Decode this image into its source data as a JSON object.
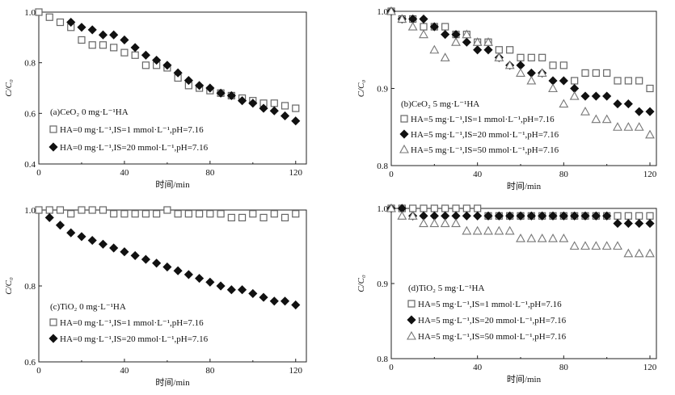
{
  "chart_data": [
    {
      "type": "scatter",
      "panel_label": "(a)CeO₂ 0 mg·L⁻¹HA",
      "xlabel": "时间/min",
      "ylabel": "C/C₀",
      "xlim": [
        0,
        125
      ],
      "ylim": [
        0.4,
        1.0
      ],
      "xticks": [
        0,
        40,
        80,
        120
      ],
      "yticks": [
        0.4,
        0.6,
        0.8,
        1.0
      ],
      "grid": false,
      "legend_position": "bottom-left",
      "series": [
        {
          "name": "HA=0 mg·L⁻¹,IS=1 mmol·L⁻¹,pH=7.16",
          "marker": "square-open",
          "x": [
            0,
            5,
            10,
            15,
            20,
            25,
            30,
            35,
            40,
            45,
            50,
            55,
            60,
            65,
            70,
            75,
            80,
            85,
            90,
            95,
            100,
            105,
            110,
            115,
            120
          ],
          "y": [
            1.0,
            0.98,
            0.96,
            0.94,
            0.89,
            0.87,
            0.87,
            0.86,
            0.84,
            0.83,
            0.79,
            0.79,
            0.78,
            0.74,
            0.71,
            0.7,
            0.69,
            0.68,
            0.67,
            0.66,
            0.65,
            0.64,
            0.64,
            0.63,
            0.62
          ]
        },
        {
          "name": "HA=0 mg·L⁻¹,IS=20 mmol·L⁻¹,pH=7.16",
          "marker": "diamond-filled",
          "x": [
            15,
            20,
            25,
            30,
            35,
            40,
            45,
            50,
            55,
            60,
            65,
            70,
            75,
            80,
            85,
            90,
            95,
            100,
            105,
            110,
            115,
            120
          ],
          "y": [
            0.96,
            0.94,
            0.93,
            0.91,
            0.91,
            0.89,
            0.86,
            0.83,
            0.81,
            0.79,
            0.76,
            0.73,
            0.71,
            0.7,
            0.68,
            0.67,
            0.65,
            0.64,
            0.62,
            0.61,
            0.59,
            0.57
          ]
        }
      ]
    },
    {
      "type": "scatter",
      "panel_label": "(b)CeO₂ 5 mg·L⁻¹HA",
      "xlabel": "时间/min",
      "ylabel": "C/C₀",
      "xlim": [
        0,
        123
      ],
      "ylim": [
        0.8,
        1.0
      ],
      "xticks": [
        0,
        40,
        80,
        120
      ],
      "yticks": [
        0.8,
        0.9,
        1.0
      ],
      "grid": false,
      "legend_position": "bottom-left",
      "series": [
        {
          "name": "HA=5 mg·L⁻¹,IS=1 mmol·L⁻¹,pH=7.16",
          "marker": "square-open",
          "x": [
            0,
            5,
            10,
            15,
            20,
            25,
            30,
            35,
            40,
            45,
            50,
            55,
            60,
            65,
            70,
            75,
            80,
            85,
            90,
            95,
            100,
            105,
            110,
            115,
            120
          ],
          "y": [
            1.0,
            0.99,
            0.99,
            0.98,
            0.98,
            0.98,
            0.97,
            0.97,
            0.96,
            0.96,
            0.95,
            0.95,
            0.94,
            0.94,
            0.94,
            0.93,
            0.93,
            0.91,
            0.92,
            0.92,
            0.92,
            0.91,
            0.91,
            0.91,
            0.9
          ]
        },
        {
          "name": "HA=5 mg·L⁻¹,IS=20 mmol·L⁻¹,pH=7.16",
          "marker": "diamond-filled",
          "x": [
            0,
            5,
            10,
            15,
            20,
            25,
            30,
            35,
            40,
            45,
            50,
            55,
            60,
            65,
            70,
            75,
            80,
            85,
            90,
            95,
            100,
            105,
            110,
            115,
            120
          ],
          "y": [
            1.0,
            0.99,
            0.99,
            0.99,
            0.98,
            0.97,
            0.97,
            0.96,
            0.95,
            0.95,
            0.94,
            0.93,
            0.93,
            0.92,
            0.92,
            0.91,
            0.91,
            0.9,
            0.89,
            0.89,
            0.89,
            0.88,
            0.88,
            0.87,
            0.87
          ]
        },
        {
          "name": "HA=5 mg·L⁻¹,IS=50 mmol·L⁻¹,pH=7.16",
          "marker": "triangle-open",
          "x": [
            0,
            5,
            10,
            15,
            20,
            25,
            30,
            35,
            40,
            45,
            50,
            55,
            60,
            65,
            70,
            75,
            80,
            85,
            90,
            95,
            100,
            105,
            110,
            115,
            120
          ],
          "y": [
            1.0,
            0.99,
            0.98,
            0.97,
            0.95,
            0.94,
            0.96,
            0.97,
            0.96,
            0.96,
            0.94,
            0.93,
            0.92,
            0.91,
            0.92,
            0.9,
            0.88,
            0.89,
            0.87,
            0.86,
            0.86,
            0.85,
            0.85,
            0.85,
            0.84
          ]
        }
      ]
    },
    {
      "type": "scatter",
      "panel_label": "(c)TiO₂ 0 mg·L⁻¹HA",
      "xlabel": "时间/min",
      "ylabel": "C/C₀",
      "xlim": [
        0,
        125
      ],
      "ylim": [
        0.6,
        1.0
      ],
      "xticks": [
        0,
        40,
        80,
        120
      ],
      "yticks": [
        0.6,
        0.8,
        1.0
      ],
      "grid": false,
      "legend_position": "bottom-left",
      "series": [
        {
          "name": "HA=0 mg·L⁻¹,IS=1 mmol·L⁻¹,pH=7.16",
          "marker": "square-open",
          "x": [
            0,
            5,
            10,
            15,
            20,
            25,
            30,
            35,
            40,
            45,
            50,
            55,
            60,
            65,
            70,
            75,
            80,
            85,
            90,
            95,
            100,
            105,
            110,
            115,
            120
          ],
          "y": [
            1.0,
            1.0,
            1.0,
            0.99,
            1.0,
            1.0,
            1.0,
            0.99,
            0.99,
            0.99,
            0.99,
            0.99,
            1.0,
            0.99,
            0.99,
            0.99,
            0.99,
            0.99,
            0.98,
            0.98,
            0.99,
            0.98,
            0.99,
            0.98,
            0.99
          ]
        },
        {
          "name": "HA=0 mg·L⁻¹,IS=20 mmol·L⁻¹,pH=7.16",
          "marker": "diamond-filled",
          "x": [
            5,
            10,
            15,
            20,
            25,
            30,
            35,
            40,
            45,
            50,
            55,
            60,
            65,
            70,
            75,
            80,
            85,
            90,
            95,
            100,
            105,
            110,
            115,
            120
          ],
          "y": [
            0.98,
            0.96,
            0.94,
            0.93,
            0.92,
            0.91,
            0.9,
            0.89,
            0.88,
            0.87,
            0.86,
            0.85,
            0.84,
            0.83,
            0.82,
            0.81,
            0.8,
            0.79,
            0.79,
            0.78,
            0.77,
            0.76,
            0.76,
            0.75
          ]
        }
      ]
    },
    {
      "type": "scatter",
      "panel_label": "(d)TiO₂ 5 mg·L⁻¹HA",
      "xlabel": "时间/min",
      "ylabel": "C/C₀",
      "xlim": [
        0,
        123
      ],
      "ylim": [
        0.8,
        1.0
      ],
      "xticks": [
        0,
        40,
        80,
        120
      ],
      "yticks": [
        0.8,
        0.9,
        1.0
      ],
      "grid": false,
      "legend_position": "bottom-left",
      "series": [
        {
          "name": "HA=5 mg·L⁻¹,IS=1 mmol·L⁻¹,pH=7.16",
          "marker": "square-open",
          "x": [
            0,
            5,
            10,
            15,
            20,
            25,
            30,
            35,
            40,
            45,
            50,
            55,
            60,
            65,
            70,
            75,
            80,
            85,
            90,
            95,
            100,
            105,
            110,
            115,
            120
          ],
          "y": [
            1.0,
            1.0,
            1.0,
            1.0,
            1.0,
            1.0,
            1.0,
            1.0,
            1.0,
            0.99,
            0.99,
            0.99,
            0.99,
            0.99,
            0.99,
            0.99,
            0.99,
            0.99,
            0.99,
            0.99,
            0.99,
            0.99,
            0.99,
            0.99,
            0.99
          ]
        },
        {
          "name": "HA=5 mg·L⁻¹,IS=20 mmol·L⁻¹,pH=7.16",
          "marker": "diamond-filled",
          "x": [
            0,
            5,
            10,
            15,
            20,
            25,
            30,
            35,
            40,
            45,
            50,
            55,
            60,
            65,
            70,
            75,
            80,
            85,
            90,
            95,
            100,
            105,
            110,
            115,
            120
          ],
          "y": [
            1.0,
            1.0,
            0.99,
            0.99,
            0.99,
            0.99,
            0.99,
            0.99,
            0.99,
            0.99,
            0.99,
            0.99,
            0.99,
            0.99,
            0.99,
            0.99,
            0.99,
            0.99,
            0.99,
            0.99,
            0.99,
            0.98,
            0.98,
            0.98,
            0.98
          ]
        },
        {
          "name": "HA=5 mg·L⁻¹,IS=50 mmol·L⁻¹,pH=7.16",
          "marker": "triangle-open",
          "x": [
            0,
            5,
            10,
            15,
            20,
            25,
            30,
            35,
            40,
            45,
            50,
            55,
            60,
            65,
            70,
            75,
            80,
            85,
            90,
            95,
            100,
            105,
            110,
            115,
            120
          ],
          "y": [
            1.0,
            0.99,
            0.99,
            0.98,
            0.98,
            0.98,
            0.98,
            0.97,
            0.97,
            0.97,
            0.97,
            0.97,
            0.96,
            0.96,
            0.96,
            0.96,
            0.96,
            0.95,
            0.95,
            0.95,
            0.95,
            0.95,
            0.94,
            0.94,
            0.94
          ]
        }
      ]
    }
  ]
}
